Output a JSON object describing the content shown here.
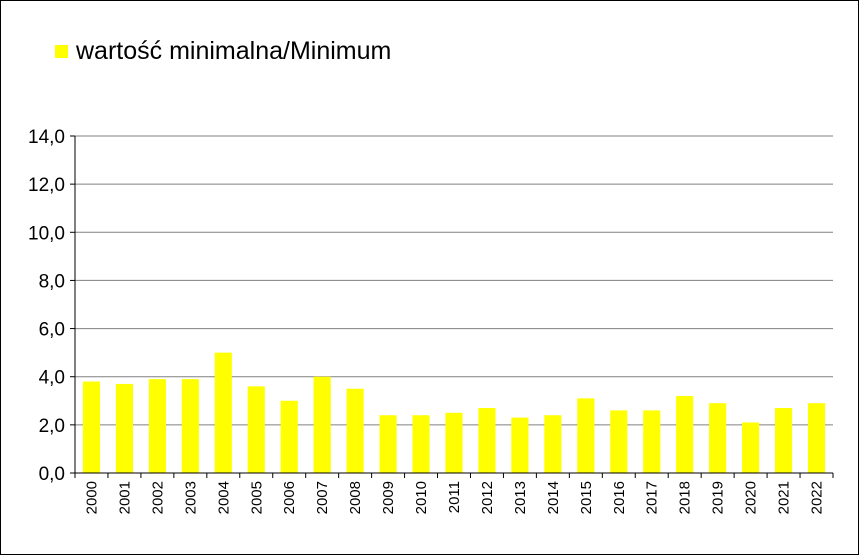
{
  "legend": {
    "label": "wartość minimalna/Minimum"
  },
  "colors": {
    "bar": "#ffff00",
    "gridline": "#808080",
    "axis": "#000000"
  },
  "chart_data": {
    "type": "bar",
    "categories": [
      "2000",
      "2001",
      "2002",
      "2003",
      "2004",
      "2005",
      "2006",
      "2007",
      "2008",
      "2009",
      "2010",
      "2011",
      "2012",
      "2013",
      "2014",
      "2015",
      "2016",
      "2017",
      "2018",
      "2019",
      "2020",
      "2021",
      "2022"
    ],
    "series": [
      {
        "name": "wartość minimalna/Minimum",
        "values": [
          3.8,
          3.7,
          3.9,
          3.9,
          5.0,
          3.6,
          3.0,
          4.0,
          3.5,
          2.4,
          2.4,
          2.5,
          2.7,
          2.3,
          2.4,
          3.1,
          2.6,
          2.6,
          3.2,
          2.9,
          2.1,
          2.7,
          2.9
        ]
      }
    ],
    "ylim": [
      0,
      14
    ],
    "yticks": [
      "0,0",
      "2,0",
      "4,0",
      "6,0",
      "8,0",
      "10,0",
      "12,0",
      "14,0"
    ],
    "grid": true,
    "legend_position": "top-left"
  }
}
